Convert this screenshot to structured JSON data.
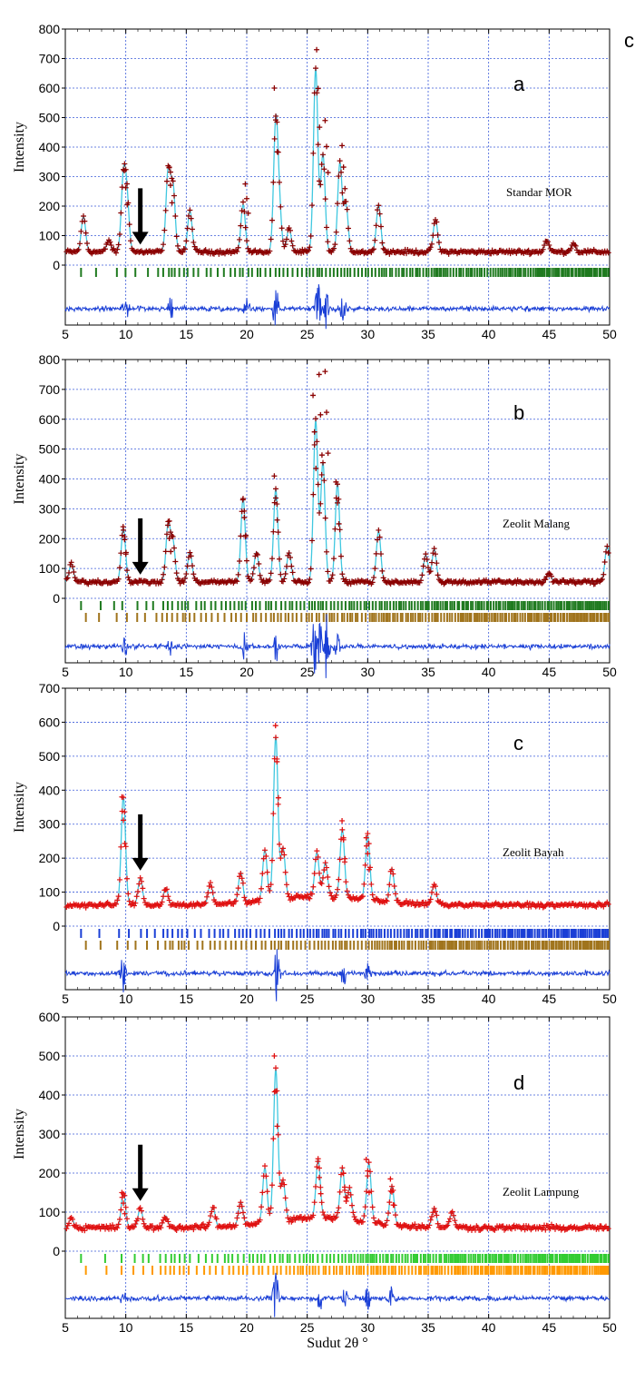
{
  "chart_data": [
    {
      "type": "line",
      "panel": "a",
      "sample_label": "Standar MOR",
      "ylabel": "Intensity",
      "xlabel": "",
      "xlim": [
        5,
        50
      ],
      "ylim": [
        0,
        800
      ],
      "xticks": [
        5,
        10,
        15,
        20,
        25,
        30,
        35,
        40,
        45,
        50
      ],
      "yticks": [
        0,
        100,
        200,
        300,
        400,
        500,
        600,
        700,
        800
      ],
      "grid": true,
      "baseline": 45,
      "arrow_x": 11.2,
      "observed_color": "#8b0000",
      "calc_color": "#40c8e0",
      "diff_color": "#1a3fd6",
      "peaks": [
        [
          6.5,
          120
        ],
        [
          8.6,
          40
        ],
        [
          9.8,
          240
        ],
        [
          10.1,
          170
        ],
        [
          13.5,
          270
        ],
        [
          13.9,
          220
        ],
        [
          15.3,
          140
        ],
        [
          19.7,
          160
        ],
        [
          22.4,
          430
        ],
        [
          22.7,
          130
        ],
        [
          23.5,
          80
        ],
        [
          25.7,
          620
        ],
        [
          26.3,
          330
        ],
        [
          27.7,
          300
        ],
        [
          28.2,
          160
        ],
        [
          30.9,
          160
        ],
        [
          35.6,
          110
        ],
        [
          44.8,
          40
        ],
        [
          47.0,
          30
        ]
      ],
      "sharp_peaks": [
        [
          10.0,
          320
        ],
        [
          13.7,
          330
        ],
        [
          20.0,
          275
        ],
        [
          22.4,
          600
        ],
        [
          25.9,
          730
        ],
        [
          26.6,
          490
        ],
        [
          28.0,
          405
        ]
      ],
      "tick_rows": [
        {
          "color": "#1f7a1f",
          "density": "mor"
        }
      ],
      "series": [
        {
          "name": "",
          "role": "observed"
        },
        {
          "name": "",
          "role": "calculated"
        },
        {
          "name": "",
          "role": "difference"
        }
      ]
    },
    {
      "type": "line",
      "panel": "b",
      "sample_label": "Zeolit Malang",
      "ylabel": "Intensity",
      "xlabel": "",
      "xlim": [
        5,
        50
      ],
      "ylim": [
        0,
        800
      ],
      "xticks": [
        5,
        10,
        15,
        20,
        25,
        30,
        35,
        40,
        45,
        50
      ],
      "yticks": [
        0,
        100,
        200,
        300,
        400,
        500,
        600,
        700,
        800
      ],
      "grid": true,
      "baseline": 55,
      "arrow_x": 11.2,
      "observed_color": "#8b0000",
      "calc_color": "#40c8e0",
      "diff_color": "#1a3fd6",
      "peaks": [
        [
          5.5,
          60
        ],
        [
          9.8,
          180
        ],
        [
          13.5,
          190
        ],
        [
          13.9,
          130
        ],
        [
          15.3,
          100
        ],
        [
          19.7,
          280
        ],
        [
          20.8,
          100
        ],
        [
          22.4,
          310
        ],
        [
          23.5,
          100
        ],
        [
          25.7,
          540
        ],
        [
          26.3,
          400
        ],
        [
          27.5,
          330
        ],
        [
          30.9,
          170
        ],
        [
          34.8,
          90
        ],
        [
          35.5,
          110
        ],
        [
          45,
          30
        ],
        [
          49.8,
          120
        ]
      ],
      "sharp_peaks": [
        [
          9.9,
          240
        ],
        [
          13.6,
          245
        ],
        [
          19.8,
          330
        ],
        [
          22.4,
          410
        ],
        [
          25.6,
          680
        ],
        [
          26.1,
          750
        ],
        [
          26.6,
          760
        ],
        [
          27.5,
          390
        ]
      ],
      "tick_rows": [
        {
          "color": "#1f7a1f",
          "density": "mor"
        },
        {
          "color": "#a0741c",
          "density": "second"
        }
      ],
      "series": [
        {
          "name": "",
          "role": "observed"
        },
        {
          "name": "",
          "role": "calculated"
        },
        {
          "name": "",
          "role": "difference"
        }
      ]
    },
    {
      "type": "line",
      "panel": "c",
      "sample_label": "Zeolit Bayah",
      "ylabel": "Intensity",
      "xlabel": "",
      "xlim": [
        5,
        50
      ],
      "ylim": [
        0,
        700
      ],
      "xticks": [
        5,
        10,
        15,
        20,
        25,
        30,
        35,
        40,
        45,
        50
      ],
      "yticks": [
        0,
        100,
        200,
        300,
        400,
        500,
        600,
        700
      ],
      "grid": true,
      "baseline": 62,
      "arrow_x": 11.2,
      "observed_color": "#e01010",
      "calc_color": "#40c8e0",
      "diff_color": "#1a3fd6",
      "peaks": [
        [
          9.8,
          320
        ],
        [
          11.2,
          80
        ],
        [
          13.3,
          50
        ],
        [
          17.0,
          60
        ],
        [
          19.5,
          90
        ],
        [
          21.5,
          150
        ],
        [
          22.4,
          480
        ],
        [
          23.0,
          150
        ],
        [
          25.8,
          130
        ],
        [
          26.5,
          100
        ],
        [
          27.9,
          200
        ],
        [
          30.0,
          190
        ],
        [
          32.0,
          100
        ],
        [
          35.5,
          60
        ]
      ],
      "sharp_peaks": [
        [
          9.8,
          380
        ],
        [
          22.5,
          590
        ],
        [
          28.0,
          310
        ],
        [
          30.0,
          260
        ]
      ],
      "tick_rows": [
        {
          "color": "#1a3fd6",
          "density": "mor"
        },
        {
          "color": "#a0741c",
          "density": "second"
        }
      ],
      "series": [
        {
          "name": "",
          "role": "observed"
        },
        {
          "name": "",
          "role": "calculated"
        },
        {
          "name": "",
          "role": "difference"
        }
      ]
    },
    {
      "type": "line",
      "panel": "d",
      "sample_label": "Zeolit Lampung",
      "ylabel": "Intensity",
      "xlabel": "Sudut 2θ °",
      "xlim": [
        5,
        50
      ],
      "ylim": [
        0,
        600
      ],
      "xticks": [
        5,
        10,
        15,
        20,
        25,
        30,
        35,
        40,
        45,
        50
      ],
      "yticks": [
        0,
        100,
        200,
        300,
        400,
        500,
        600
      ],
      "grid": true,
      "baseline": 60,
      "arrow_x": 11.2,
      "observed_color": "#e01010",
      "calc_color": "#40c8e0",
      "diff_color": "#1a3fd6",
      "peaks": [
        [
          5.5,
          25
        ],
        [
          9.8,
          90
        ],
        [
          11.2,
          50
        ],
        [
          13.3,
          30
        ],
        [
          17.2,
          50
        ],
        [
          19.5,
          60
        ],
        [
          21.5,
          140
        ],
        [
          22.4,
          390
        ],
        [
          23.0,
          100
        ],
        [
          25.9,
          150
        ],
        [
          27.9,
          130
        ],
        [
          28.5,
          80
        ],
        [
          30.1,
          150
        ],
        [
          32.0,
          100
        ],
        [
          35.5,
          50
        ],
        [
          37.0,
          40
        ]
      ],
      "sharp_peaks": [
        [
          9.8,
          150
        ],
        [
          22.4,
          500
        ],
        [
          26.0,
          230
        ],
        [
          28.1,
          200
        ],
        [
          30.0,
          235
        ],
        [
          32.0,
          185
        ]
      ],
      "tick_rows": [
        {
          "color": "#33cc33",
          "density": "mor"
        },
        {
          "color": "#ff9900",
          "density": "second"
        }
      ],
      "series": [
        {
          "name": "",
          "role": "observed"
        },
        {
          "name": "",
          "role": "calculated"
        },
        {
          "name": "",
          "role": "difference"
        }
      ]
    }
  ],
  "stray_label": "c",
  "style": {
    "grid_color": "#3b5bd9",
    "axis_color": "#000000",
    "arrow_color": "#000000"
  }
}
